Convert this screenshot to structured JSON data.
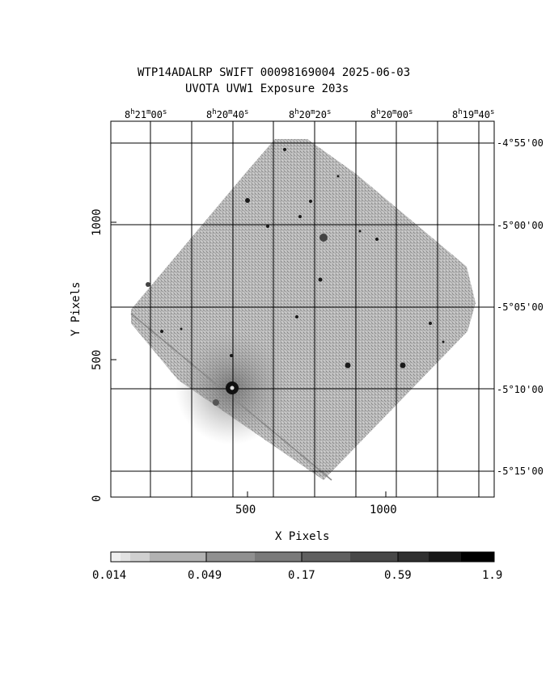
{
  "title": {
    "line1": "WTP14ADALRP SWIFT 00098169004 2025-06-03",
    "line2": "UVOTA UVW1 Exposure        203s"
  },
  "xaxis": {
    "label": "X Pixels",
    "ticks": [
      "500",
      "1000"
    ]
  },
  "yaxis": {
    "label": "Y Pixels",
    "ticks": [
      "0",
      "500",
      "1000"
    ]
  },
  "ra_ticks": [
    {
      "h": "8",
      "m": "21",
      "s": "00"
    },
    {
      "h": "8",
      "m": "20",
      "s": "40"
    },
    {
      "h": "8",
      "m": "20",
      "s": "20"
    },
    {
      "h": "8",
      "m": "20",
      "s": "00"
    },
    {
      "h": "8",
      "m": "19",
      "s": "40"
    }
  ],
  "dec_ticks": [
    "-4°55'00",
    "-5°00'00",
    "-5°05'00",
    "-5°10'00",
    "-5°15'00"
  ],
  "colorbar": {
    "ticks": [
      "0.014",
      "0.049",
      "0.17",
      "0.59",
      "1.9"
    ]
  },
  "colors": {
    "background": "#ffffff",
    "grid": "#000000",
    "image_base": "#a9a9a9"
  }
}
